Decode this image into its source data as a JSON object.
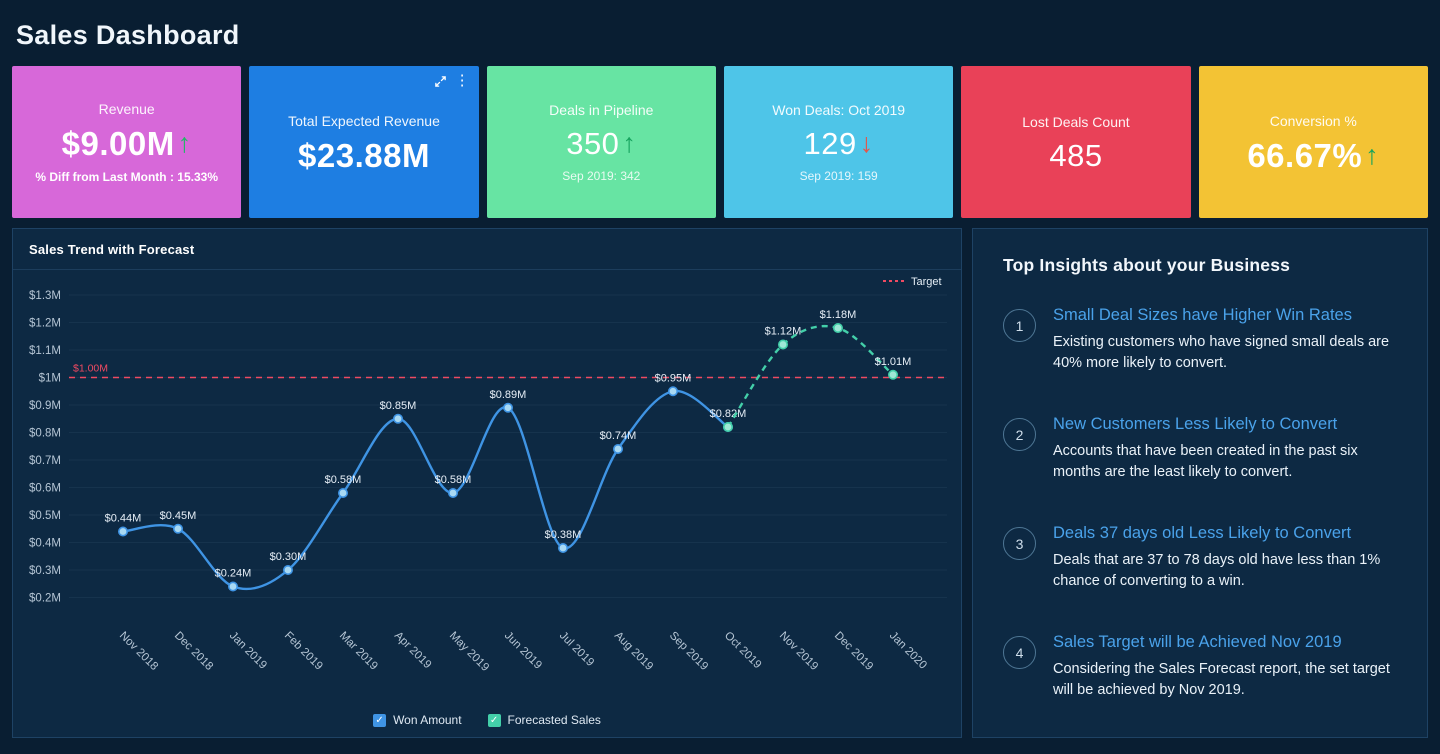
{
  "header": {
    "title": "Sales Dashboard"
  },
  "icons": {
    "kebab_menu": "⋮",
    "checkmark": "✓"
  },
  "kpi_cards": [
    {
      "title": "Revenue",
      "value": "$9.00M",
      "trend": {
        "icon": "↑",
        "color": "#23b667"
      },
      "subtext": "% Diff from Last Month : 15.33%",
      "bg": "#d768d9"
    },
    {
      "title": "Total Expected Revenue",
      "value": "$23.88M",
      "bg": "#1e7ee2"
    },
    {
      "title": "Deals in Pipeline",
      "value": "350",
      "trend": {
        "icon": "↑",
        "color": "#17a45f"
      },
      "subtext": "Sep 2019: 342",
      "bg": "#67e4a3"
    },
    {
      "title": "Won Deals: Oct 2019",
      "value": "129",
      "trend": {
        "icon": "↓",
        "color": "#e2574b"
      },
      "subtext": "Sep 2019: 159",
      "bg": "#4ec5e8"
    },
    {
      "title": "Lost Deals Count",
      "value": "485",
      "bg": "#e94158"
    },
    {
      "title": "Conversion %",
      "value": "66.67%",
      "trend": {
        "icon": "↑",
        "color": "#1ba55c"
      },
      "bg": "#f3c334"
    }
  ],
  "chart_data": {
    "type": "line",
    "title": "Sales Trend with Forecast",
    "categories": [
      "Nov 2018",
      "Dec 2018",
      "Jan 2019",
      "Feb 2019",
      "Mar 2019",
      "Apr 2019",
      "May 2019",
      "Jun 2019",
      "Jul 2019",
      "Aug 2019",
      "Sep 2019",
      "Oct 2019",
      "Nov 2019",
      "Dec 2019",
      "Jan 2020"
    ],
    "series": [
      {
        "name": "Won Amount",
        "style": "solid",
        "color": "#3f94e4",
        "marker_fill": "#a9d9f3",
        "values": [
          0.44,
          0.45,
          0.24,
          0.3,
          0.58,
          0.85,
          0.58,
          0.89,
          0.38,
          0.74,
          0.95,
          0.82,
          null,
          null,
          null
        ]
      },
      {
        "name": "Forecasted Sales",
        "style": "dashed",
        "color": "#43cfa9",
        "marker_fill": "#9fe8d6",
        "values": [
          null,
          null,
          null,
          null,
          null,
          null,
          null,
          null,
          null,
          null,
          null,
          0.82,
          1.12,
          1.18,
          1.01
        ]
      }
    ],
    "target": {
      "value": 1.0,
      "label": "$1.00M",
      "legend_label": "Target",
      "color": "#ef4a62"
    },
    "yticks": [
      1.3,
      1.2,
      1.1,
      1.0,
      0.9,
      0.8,
      0.7,
      0.6,
      0.5,
      0.4,
      0.3,
      0.2
    ],
    "ytick_labels": [
      "$1.3M",
      "$1.2M",
      "$1.1M",
      "$1M",
      "$0.9M",
      "$0.8M",
      "$0.7M",
      "$0.6M",
      "$0.5M",
      "$0.4M",
      "$0.3M",
      "$0.2M"
    ],
    "ylim": [
      0.14,
      1.34
    ],
    "grid": true,
    "legend_position": "bottom-center",
    "colors": {
      "grid": "#16334d",
      "axis_text": "#b5c5d4",
      "value_label": "#e7eff7",
      "legend_text": "#e4edf5"
    }
  },
  "insights": {
    "title": "Top Insights about your Business",
    "items": [
      {
        "number": "1",
        "title": "Small Deal Sizes have Higher Win Rates",
        "body": "Existing customers who have signed small deals are 40% more likely to convert."
      },
      {
        "number": "2",
        "title": "New Customers Less Likely to Convert",
        "body": "Accounts that have been created in the past six months are the least likely to convert."
      },
      {
        "number": "3",
        "title": "Deals 37 days old Less Likely to Convert",
        "body": "Deals that are 37 to 78 days old have less than 1% chance of converting to a win."
      },
      {
        "number": "4",
        "title": "Sales Target will be Achieved Nov 2019",
        "body": "Considering the Sales Forecast report, the set target will be achieved by Nov 2019."
      }
    ]
  }
}
